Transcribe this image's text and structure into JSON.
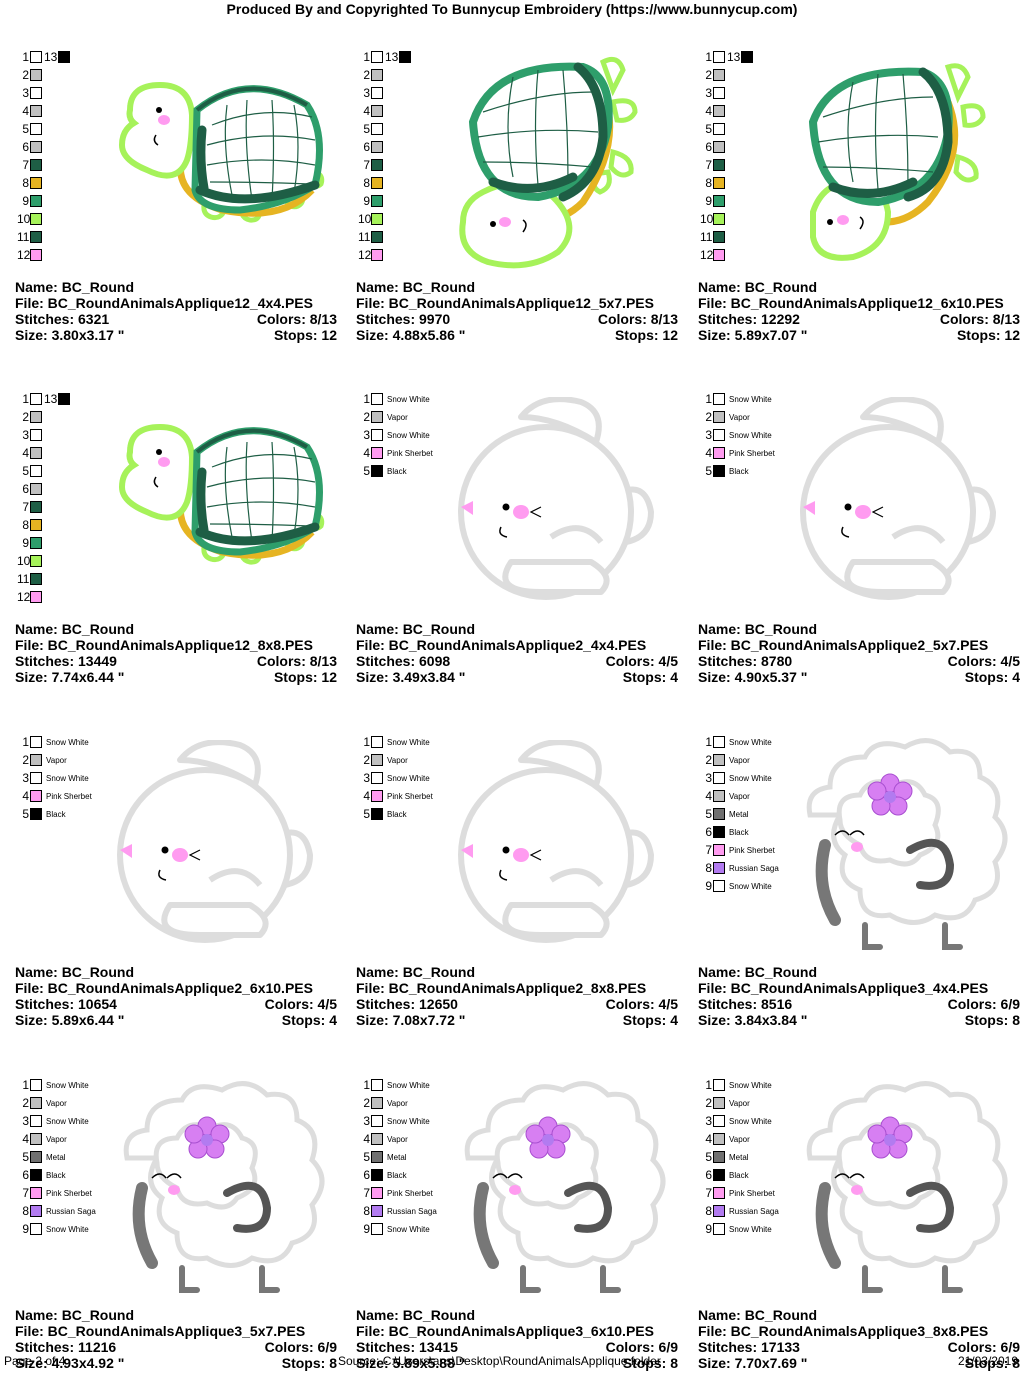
{
  "header": "Produced By and Copyrighted To Bunnycup Embroidery (https://www.bunnycup.com)",
  "palettes": {
    "turtle": {
      "extra": {
        "num": "13",
        "color": "#000000"
      },
      "items": [
        {
          "num": "1",
          "color": "#FFFFFF",
          "name": ""
        },
        {
          "num": "2",
          "color": "#C0C0C0",
          "name": ""
        },
        {
          "num": "3",
          "color": "#FFFFFF",
          "name": ""
        },
        {
          "num": "4",
          "color": "#C0C0C0",
          "name": ""
        },
        {
          "num": "5",
          "color": "#FFFFFF",
          "name": ""
        },
        {
          "num": "6",
          "color": "#C0C0C0",
          "name": ""
        },
        {
          "num": "7",
          "color": "#1E5E45",
          "name": ""
        },
        {
          "num": "8",
          "color": "#E6B422",
          "name": ""
        },
        {
          "num": "9",
          "color": "#2E9E6B",
          "name": ""
        },
        {
          "num": "10",
          "color": "#A6F25A",
          "name": ""
        },
        {
          "num": "11",
          "color": "#1E5E45",
          "name": ""
        },
        {
          "num": "12",
          "color": "#FF9BF0",
          "name": ""
        }
      ]
    },
    "bunny": {
      "items": [
        {
          "num": "1",
          "color": "#FFFFFF",
          "name": "Snow White"
        },
        {
          "num": "2",
          "color": "#C0C0C0",
          "name": "Vapor"
        },
        {
          "num": "3",
          "color": "#FFFFFF",
          "name": "Snow White"
        },
        {
          "num": "4",
          "color": "#FF9BF0",
          "name": "Pink Sherbet"
        },
        {
          "num": "5",
          "color": "#000000",
          "name": "Black"
        }
      ]
    },
    "sheep": {
      "items": [
        {
          "num": "1",
          "color": "#FFFFFF",
          "name": "Snow White"
        },
        {
          "num": "2",
          "color": "#C0C0C0",
          "name": "Vapor"
        },
        {
          "num": "3",
          "color": "#FFFFFF",
          "name": "Snow White"
        },
        {
          "num": "4",
          "color": "#C0C0C0",
          "name": "Vapor"
        },
        {
          "num": "5",
          "color": "#707070",
          "name": "Metal"
        },
        {
          "num": "6",
          "color": "#000000",
          "name": "Black"
        },
        {
          "num": "7",
          "color": "#FF9BF0",
          "name": "Pink Sherbet"
        },
        {
          "num": "8",
          "color": "#B27BF0",
          "name": "Russian Saga"
        },
        {
          "num": "9",
          "color": "#FFFFFF",
          "name": "Snow White"
        }
      ]
    }
  },
  "labels": {
    "name": "Name: ",
    "file": "File: ",
    "stitches": "Stitches: ",
    "colors": "Colors: ",
    "size": "Size: ",
    "stops": "Stops: "
  },
  "cells": [
    {
      "palette": "turtle",
      "art": "turtle-a",
      "name": "BC_Round",
      "file": "BC_RoundAnimalsApplique12_4x4.PES",
      "stitches": "6321",
      "colors": "8/13",
      "size": "3.80x3.17 \"",
      "stops": "12"
    },
    {
      "palette": "turtle",
      "art": "turtle-b",
      "name": "BC_Round",
      "file": "BC_RoundAnimalsApplique12_5x7.PES",
      "stitches": "9970",
      "colors": "8/13",
      "size": "4.88x5.86 \"",
      "stops": "12"
    },
    {
      "palette": "turtle",
      "art": "turtle-c",
      "name": "BC_Round",
      "file": "BC_RoundAnimalsApplique12_6x10.PES",
      "stitches": "12292",
      "colors": "8/13",
      "size": "5.89x7.07 \"",
      "stops": "12"
    },
    {
      "palette": "turtle",
      "art": "turtle-a",
      "name": "BC_Round",
      "file": "BC_RoundAnimalsApplique12_8x8.PES",
      "stitches": "13449",
      "colors": "8/13",
      "size": "7.74x6.44 \"",
      "stops": "12"
    },
    {
      "palette": "bunny",
      "art": "bunny",
      "name": "BC_Round",
      "file": "BC_RoundAnimalsApplique2_4x4.PES",
      "stitches": "6098",
      "colors": "4/5",
      "size": "3.49x3.84 \"",
      "stops": "4"
    },
    {
      "palette": "bunny",
      "art": "bunny",
      "name": "BC_Round",
      "file": "BC_RoundAnimalsApplique2_5x7.PES",
      "stitches": "8780",
      "colors": "4/5",
      "size": "4.90x5.37 \"",
      "stops": "4"
    },
    {
      "palette": "bunny",
      "art": "bunny",
      "name": "BC_Round",
      "file": "BC_RoundAnimalsApplique2_6x10.PES",
      "stitches": "10654",
      "colors": "4/5",
      "size": "5.89x6.44 \"",
      "stops": "4"
    },
    {
      "palette": "bunny",
      "art": "bunny",
      "name": "BC_Round",
      "file": "BC_RoundAnimalsApplique2_8x8.PES",
      "stitches": "12650",
      "colors": "4/5",
      "size": "7.08x7.72 \"",
      "stops": "4"
    },
    {
      "palette": "sheep",
      "art": "sheep",
      "name": "BC_Round",
      "file": "BC_RoundAnimalsApplique3_4x4.PES",
      "stitches": "8516",
      "colors": "6/9",
      "size": "3.84x3.84 \"",
      "stops": "8"
    },
    {
      "palette": "sheep",
      "art": "sheep",
      "name": "BC_Round",
      "file": "BC_RoundAnimalsApplique3_5x7.PES",
      "stitches": "11216",
      "colors": "6/9",
      "size": "4.93x4.92 \"",
      "stops": "8"
    },
    {
      "palette": "sheep",
      "art": "sheep",
      "name": "BC_Round",
      "file": "BC_RoundAnimalsApplique3_6x10.PES",
      "stitches": "13415",
      "colors": "6/9",
      "size": "5.89x5.88 \"",
      "stops": "8"
    },
    {
      "palette": "sheep",
      "art": "sheep",
      "name": "BC_Round",
      "file": "BC_RoundAnimalsApplique3_8x8.PES",
      "stitches": "17133",
      "colors": "6/9",
      "size": "7.70x7.69 \"",
      "stops": "8"
    }
  ],
  "footer": {
    "page": "Page 2 of 4",
    "source": "Source: C:\\Users\\ans\\Desktop\\RoundAnimalsApplique folder",
    "date": "21/03/2019"
  }
}
